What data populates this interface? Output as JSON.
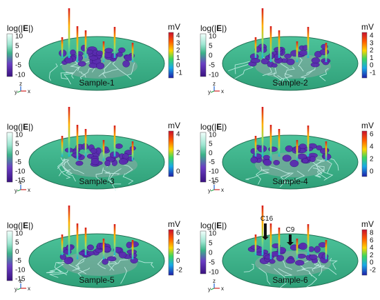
{
  "left_title_prefix": "log(|",
  "left_title_bold": "E",
  "left_title_suffix": "|)",
  "right_unit": "mV",
  "axis_triad": {
    "y": "y",
    "z": "z",
    "x": "x"
  },
  "colors": {
    "disk": "#3bb389",
    "disk_edge": "#1f6f52",
    "purple": "#5a2bb0",
    "trace": "#c6f0e8"
  },
  "panels": [
    {
      "sample_label": "Sample-1",
      "left_ticks": [
        "10",
        "5",
        "0",
        "-5",
        "-10"
      ],
      "right_ticks": [
        "4",
        "3",
        "2",
        "1",
        "0",
        "-1"
      ],
      "annotations": []
    },
    {
      "sample_label": "Sample-2",
      "left_ticks": [
        "10",
        "5",
        "0",
        "-5",
        "-10"
      ],
      "right_ticks": [
        "4",
        "3",
        "2",
        "1",
        "0",
        "-1"
      ],
      "annotations": []
    },
    {
      "sample_label": "Sample-3",
      "left_ticks": [
        "10",
        "5",
        "0",
        "-5",
        "-10",
        "-15"
      ],
      "right_ticks": [
        "4",
        "2",
        "0"
      ],
      "annotations": []
    },
    {
      "sample_label": "Sample-4",
      "left_ticks": [
        "10",
        "5",
        "0",
        "-5",
        "-10",
        "-15"
      ],
      "right_ticks": [
        "6",
        "4",
        "2",
        "0"
      ],
      "annotations": []
    },
    {
      "sample_label": "Sample-5",
      "left_ticks": [
        "10",
        "5",
        "0",
        "-5",
        "-10",
        "-15"
      ],
      "right_ticks": [
        "6",
        "4",
        "2",
        "0",
        "-2"
      ],
      "annotations": []
    },
    {
      "sample_label": "Sample-6",
      "left_ticks": [
        "10",
        "5",
        "0",
        "-5",
        "-10"
      ],
      "right_ticks": [
        "8",
        "6",
        "4",
        "2",
        "0",
        "-2"
      ],
      "annotations": [
        "C16",
        "C9"
      ]
    }
  ]
}
